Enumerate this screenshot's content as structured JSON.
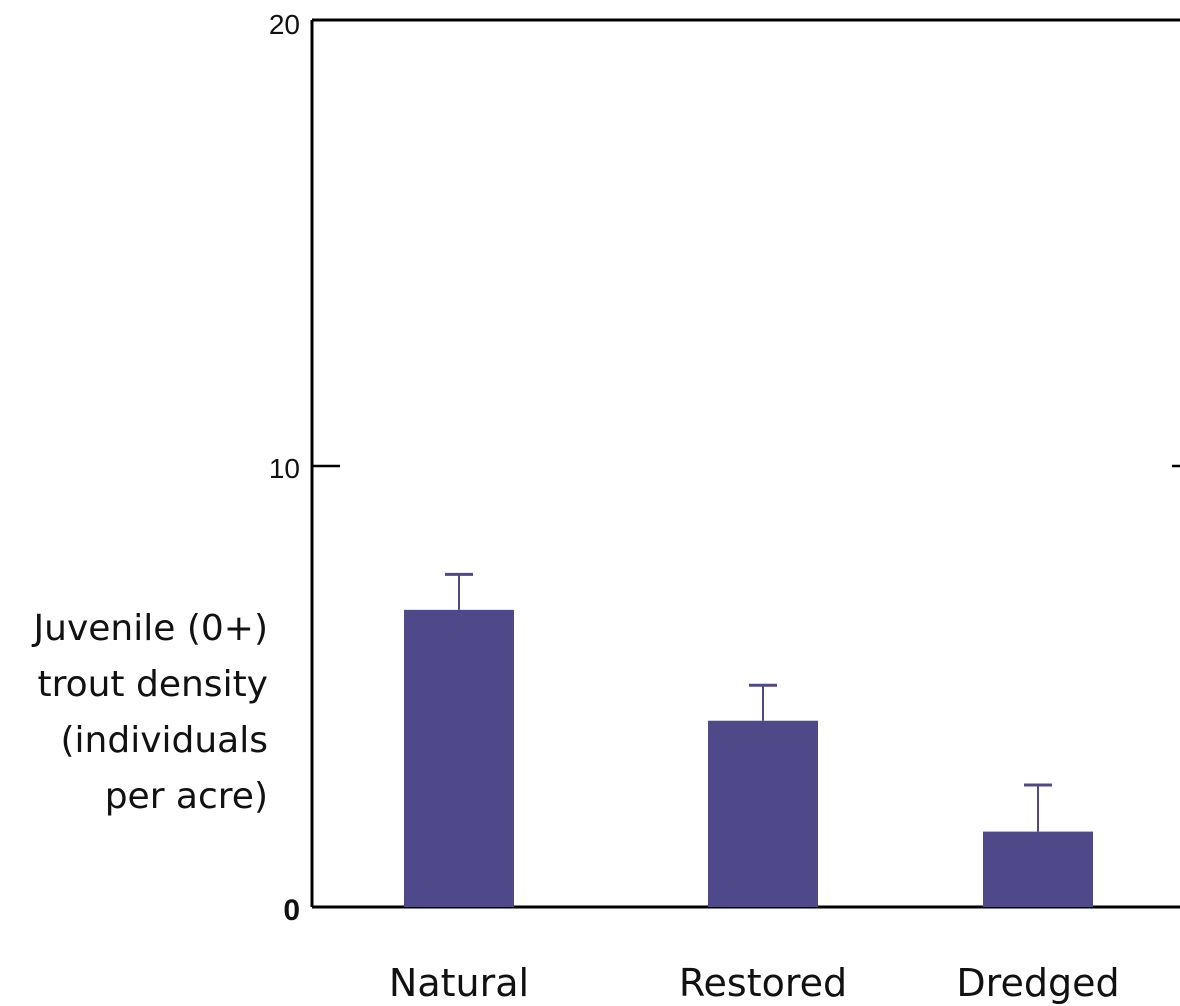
{
  "chart_data": {
    "type": "bar",
    "categories": [
      "Natural",
      "Restored",
      "Dredged"
    ],
    "values": [
      6.7,
      4.2,
      1.7
    ],
    "error_upper": [
      7.5,
      5.0,
      2.75
    ],
    "ylabel_lines": [
      "Juvenile (0+)",
      "trout density",
      "(individuals",
      "per acre)"
    ],
    "ylim": [
      0,
      20
    ],
    "yticks": [
      "0",
      "10",
      "20"
    ],
    "grid": false,
    "bar_color": "#4F4889",
    "axis_color": "#000000"
  }
}
